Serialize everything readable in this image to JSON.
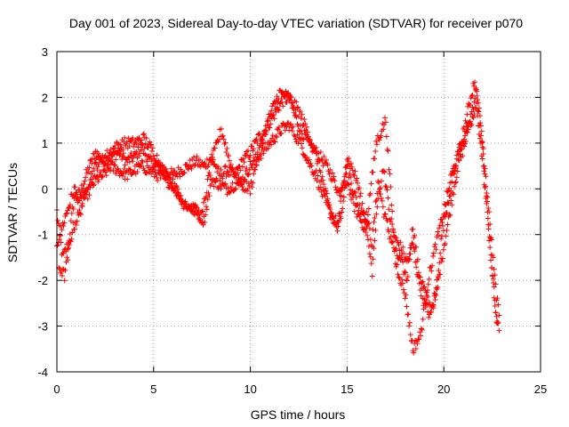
{
  "chart_data": {
    "type": "scatter",
    "title": "Day 001 of 2023, Sidereal Day-to-day VTEC variation (SDTVAR) for receiver p070",
    "xlabel": "GPS time / hours",
    "ylabel": "SDTVAR / TECUs",
    "xlim": [
      0,
      25
    ],
    "ylim": [
      -4,
      3
    ],
    "xticks": [
      0,
      5,
      10,
      15,
      20,
      25
    ],
    "yticks": [
      -4,
      -3,
      -2,
      -1,
      0,
      1,
      2,
      3
    ],
    "xtick_labels": [
      "0",
      "5",
      "10",
      "15",
      "20",
      "25"
    ],
    "ytick_labels": [
      "-4",
      "-3",
      "-2",
      "-1",
      "0",
      "1",
      "2",
      "3"
    ],
    "grid": true,
    "marker": "+",
    "series": [
      {
        "name": "SDTVAR",
        "color": "#ff0000",
        "bands": [
          {
            "x": [
              0.0,
              0.3,
              0.6,
              0.9,
              1.2,
              1.6,
              2.0,
              2.4,
              2.8,
              3.2,
              3.6,
              4.0,
              4.4,
              4.8,
              5.2,
              5.6,
              6.0,
              6.4,
              6.8,
              7.2,
              7.6,
              8.0,
              8.4,
              8.8,
              9.2,
              9.6,
              10.0,
              10.4,
              10.8,
              11.2,
              11.6,
              12.0,
              12.3,
              12.6,
              13.0,
              13.4,
              13.8,
              14.2,
              14.6,
              15.0,
              15.3,
              15.6,
              16.0,
              16.3,
              16.6,
              16.9,
              17.2,
              17.5,
              17.8,
              18.1,
              18.4,
              18.7,
              19.0,
              19.3,
              19.6,
              19.9,
              20.2,
              20.5,
              20.8,
              21.1,
              21.4,
              21.7,
              22.0,
              22.3,
              22.6,
              22.9
            ],
            "y": [
              -0.5,
              -1.5,
              -1.2,
              -0.2,
              -0.1,
              0.4,
              0.8,
              0.6,
              0.7,
              0.8,
              0.6,
              0.7,
              0.9,
              0.6,
              0.5,
              0.4,
              0.3,
              0.4,
              0.5,
              0.6,
              0.5,
              0.7,
              0.3,
              0.4,
              0.3,
              0.6,
              0.8,
              1.1,
              1.3,
              1.6,
              1.9,
              2.0,
              1.6,
              1.3,
              1.0,
              0.8,
              0.6,
              0.3,
              -0.1,
              0.5,
              0.0,
              -0.4,
              -0.6,
              -1.2,
              0.2,
              -0.5,
              -1.0,
              -1.4,
              -1.6,
              -2.0,
              -0.8,
              -1.8,
              -2.2,
              -2.6,
              -2.4,
              -1.5,
              -0.8,
              0.0,
              0.6,
              1.0,
              1.6,
              2.2,
              1.0,
              -0.4,
              -1.8,
              -3.0
            ]
          },
          {
            "x": [
              0.0,
              0.3,
              0.6,
              0.9,
              1.2,
              1.6,
              2.0,
              2.4,
              2.8,
              3.2,
              3.6,
              4.0,
              4.4,
              4.8,
              5.2,
              5.6,
              6.0,
              6.4,
              6.8,
              7.2,
              7.6,
              8.0,
              8.4,
              8.8,
              9.2,
              9.6,
              10.0,
              10.4,
              10.8,
              11.2,
              11.6,
              12.0,
              12.3,
              12.6,
              13.0,
              13.4,
              13.8,
              14.2,
              14.6,
              15.0,
              15.3,
              15.6,
              16.0,
              16.3,
              16.6,
              16.9,
              17.2,
              17.5,
              17.8,
              18.1,
              18.4,
              18.7,
              19.0,
              19.3,
              19.6,
              19.9,
              20.2,
              20.5,
              20.8,
              21.1,
              21.4,
              21.7,
              22.0,
              22.3,
              22.6,
              22.9
            ],
            "y": [
              -1.2,
              -0.8,
              -0.4,
              0.0,
              -0.3,
              -0.1,
              0.2,
              0.3,
              0.5,
              0.4,
              0.3,
              0.4,
              0.5,
              0.4,
              0.3,
              0.2,
              0.1,
              -0.2,
              -0.4,
              -0.5,
              -0.7,
              0.2,
              0.1,
              0.0,
              0.1,
              0.2,
              0.5,
              0.7,
              0.9,
              1.1,
              1.3,
              1.4,
              1.2,
              1.0,
              0.6,
              0.3,
              -0.2,
              -0.6,
              -0.8,
              0.2,
              -0.3,
              -0.6,
              -0.9,
              -1.8,
              -0.2,
              0.5,
              -0.6,
              -1.1,
              -1.3,
              -1.6,
              -1.2,
              -2.0,
              -2.5,
              -2.8,
              -2.2,
              -1.0,
              -0.3,
              0.3,
              0.9,
              1.2,
              1.4,
              1.8,
              0.6,
              -0.8,
              -2.4,
              -3.3
            ]
          },
          {
            "x": [
              0.1,
              0.4,
              0.8,
              1.2,
              1.6,
              2.0,
              2.5,
              3.0,
              3.5,
              4.0,
              4.5,
              5.0,
              5.5,
              6.0,
              6.5,
              7.0,
              7.5,
              8.0,
              8.5,
              9.0,
              9.5,
              10.0,
              10.5,
              11.0,
              11.5,
              12.0,
              12.5,
              13.0,
              13.5,
              14.0,
              14.5,
              15.0,
              15.5,
              16.0,
              16.5,
              17.0,
              17.5,
              18.0,
              18.4,
              18.8,
              19.2,
              19.6,
              20.0,
              20.4,
              20.8,
              21.2,
              21.6,
              22.0,
              22.4,
              22.8
            ],
            "y": [
              -1.7,
              -1.9,
              -0.9,
              -0.5,
              0.1,
              0.5,
              0.7,
              0.9,
              1.0,
              1.0,
              1.1,
              0.8,
              0.4,
              0.1,
              -0.3,
              -0.4,
              -0.6,
              0.6,
              1.3,
              0.5,
              0.1,
              0.0,
              0.9,
              1.6,
              2.1,
              2.0,
              1.7,
              1.2,
              0.6,
              -0.3,
              -0.9,
              0.7,
              0.2,
              -0.8,
              1.0,
              1.5,
              -1.6,
              -2.3,
              -3.5,
              -3.2,
              -2.0,
              -1.2,
              -0.5,
              0.3,
              0.8,
              1.6,
              2.4,
              0.9,
              -1.2,
              -3.2
            ]
          }
        ]
      }
    ]
  }
}
